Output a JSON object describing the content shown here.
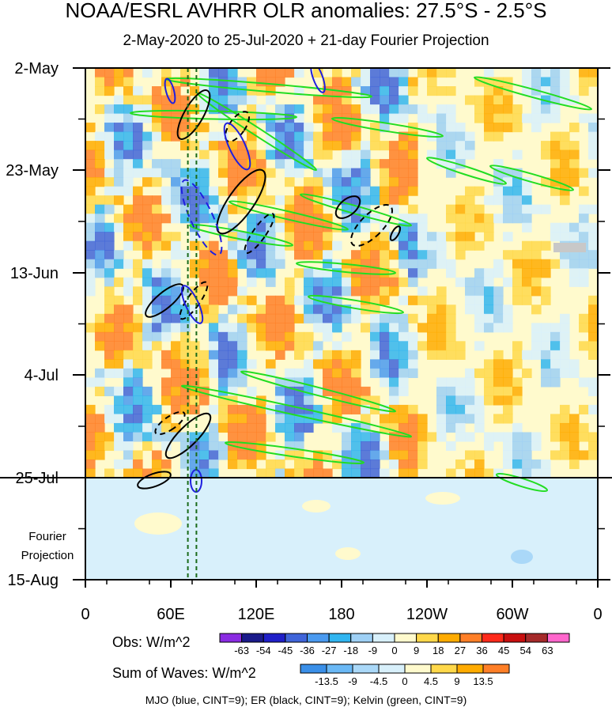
{
  "header": {
    "title": "NOAA/ESRL AVHRR OLR anomalies: 27.5°S - 2.5°S",
    "subtitle": "2-May-2020 to 25-Jul-2020 + 21-day Fourier Projection"
  },
  "chart_data": {
    "type": "heatmap",
    "title": "NOAA/ESRL AVHRR OLR anomalies: 27.5°S - 2.5°S",
    "subtitle": "2-May-2020 to 25-Jul-2020 + 21-day Fourier Projection",
    "x_axis": {
      "ticks": [
        "0",
        "60E",
        "120E",
        "180",
        "120W",
        "60W",
        "0"
      ],
      "range_degrees_east": [
        0,
        360
      ]
    },
    "y_axis": {
      "ticks": [
        "2-May",
        "23-May",
        "13-Jun",
        "4-Jul",
        "25-Jul",
        "15-Aug"
      ],
      "observed_end": "25-Jul",
      "projection_label": "Fourier\nProjection"
    },
    "obs_colorbar": {
      "label": "Obs: W/m^2",
      "levels": [
        "-63",
        "-54",
        "-45",
        "-36",
        "-27",
        "-18",
        "-9",
        "0",
        "9",
        "18",
        "27",
        "36",
        "45",
        "54",
        "63"
      ],
      "colors": [
        "#8a2be2",
        "#1a1a8a",
        "#1f1fc8",
        "#3f64d9",
        "#4a9af0",
        "#31b5f0",
        "#9ed0f5",
        "#d8f0fb",
        "#fffacd",
        "#ffd84a",
        "#ffab00",
        "#ff7f27",
        "#ff2a1a",
        "#c80f0f",
        "#a52a2a",
        "#ff66cc"
      ]
    },
    "waves_colorbar": {
      "label": "Sum of Waves: W/m^2",
      "levels": [
        "-13.5",
        "-9",
        "-4.5",
        "0",
        "4.5",
        "9",
        "13.5"
      ],
      "colors": [
        "#3a8fe8",
        "#6ab8f5",
        "#aad8f8",
        "#d8f0fb",
        "#fffacd",
        "#ffd84a",
        "#ffab00",
        "#ff7f27"
      ]
    },
    "contours": "MJO (blue, CINT=9); ER (black, CINT=9); Kelvin (green, CINT=9)",
    "reference_longitudes_E": [
      72,
      78
    ]
  }
}
